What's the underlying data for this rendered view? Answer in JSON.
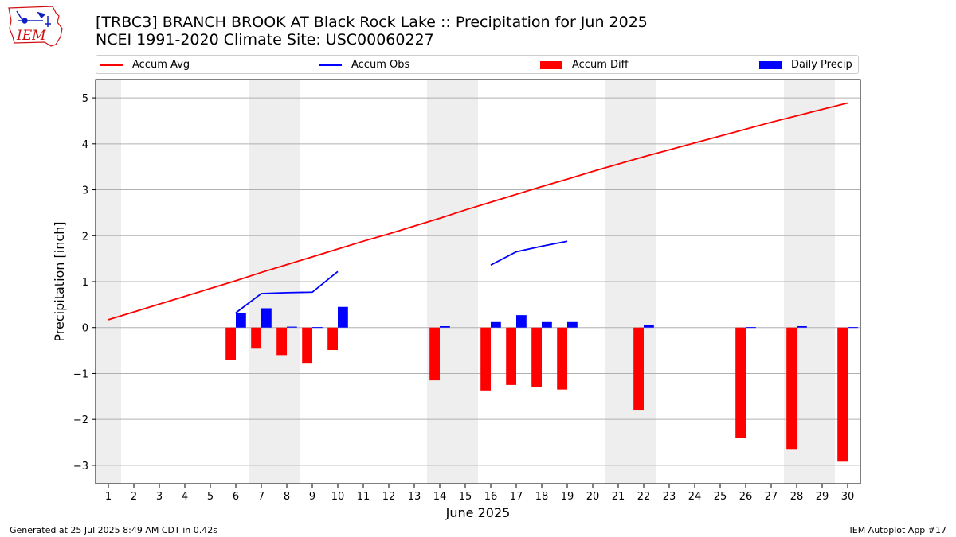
{
  "title_line1": "[TRBC3] BRANCH BROOK  AT Black Rock Lake :: Precipitation for Jun 2025",
  "title_line2": "NCEI 1991-2020 Climate Site: USC00060227",
  "logo_text": "IEM",
  "footer_left": "Generated at 25 Jul 2025 8:49 AM CDT in 0.42s",
  "footer_right": "IEM Autoplot App #17",
  "legend": [
    {
      "label": "Accum Avg",
      "kind": "line",
      "color": "#ff0000"
    },
    {
      "label": "Accum Obs",
      "kind": "line",
      "color": "#0000ff"
    },
    {
      "label": "Accum Diff",
      "kind": "patch",
      "color": "#ff0000"
    },
    {
      "label": "Daily Precip",
      "kind": "patch",
      "color": "#0000ff"
    }
  ],
  "chart_data": {
    "type": "bar",
    "xlabel": "June 2025",
    "ylabel": "Precipitation [inch]",
    "xlim": [
      0.5,
      30.5
    ],
    "ylim": [
      -3.4,
      5.4
    ],
    "x_ticks": [
      1,
      2,
      3,
      4,
      5,
      6,
      7,
      8,
      9,
      10,
      11,
      12,
      13,
      14,
      15,
      16,
      17,
      18,
      19,
      20,
      21,
      22,
      23,
      24,
      25,
      26,
      27,
      28,
      29,
      30
    ],
    "y_ticks": [
      -3,
      -2,
      -1,
      0,
      1,
      2,
      3,
      4,
      5
    ],
    "y_tick_labels": [
      "−3",
      "−2",
      "−1",
      "0",
      "1",
      "2",
      "3",
      "4",
      "5"
    ],
    "grid": "horizontal",
    "weekend_days": [
      1,
      7,
      8,
      14,
      15,
      21,
      22,
      28,
      29
    ],
    "weekend_color": "#eeeeee",
    "series": [
      {
        "name": "Accum Avg",
        "kind": "line",
        "color": "#ff0000",
        "x": [
          1,
          2,
          3,
          4,
          5,
          6,
          7,
          8,
          9,
          10,
          11,
          12,
          13,
          14,
          15,
          16,
          17,
          18,
          19,
          20,
          21,
          22,
          23,
          24,
          25,
          26,
          27,
          28,
          29,
          30
        ],
        "values": [
          0.17,
          0.34,
          0.51,
          0.68,
          0.85,
          1.02,
          1.2,
          1.37,
          1.54,
          1.71,
          1.88,
          2.04,
          2.21,
          2.38,
          2.56,
          2.73,
          2.9,
          3.07,
          3.23,
          3.4,
          3.56,
          3.72,
          3.87,
          4.02,
          4.17,
          4.32,
          4.47,
          4.61,
          4.75,
          4.89
        ]
      },
      {
        "name": "Accum Obs",
        "kind": "line",
        "color": "#0000ff",
        "segments": [
          {
            "x": [
              6,
              7,
              8,
              9,
              10
            ],
            "values": [
              0.32,
              0.74,
              0.76,
              0.77,
              1.22
            ]
          },
          {
            "x": [
              16,
              17,
              18,
              19
            ],
            "values": [
              1.36,
              1.65,
              1.77,
              1.88
            ]
          }
        ]
      },
      {
        "name": "Accum Diff",
        "kind": "bar",
        "color": "#ff0000",
        "offset": -0.2,
        "width": 0.4,
        "x": [
          6,
          7,
          8,
          9,
          10,
          14,
          16,
          17,
          18,
          19,
          22,
          26,
          28,
          30
        ],
        "values": [
          -0.7,
          -0.46,
          -0.6,
          -0.77,
          -0.49,
          -1.15,
          -1.37,
          -1.25,
          -1.3,
          -1.35,
          -1.79,
          -2.4,
          -2.66,
          -2.92
        ]
      },
      {
        "name": "Daily Precip",
        "kind": "bar",
        "color": "#0000ff",
        "offset": 0.2,
        "width": 0.4,
        "x": [
          6,
          7,
          8,
          9,
          10,
          14,
          16,
          17,
          18,
          19,
          22,
          26,
          28,
          30
        ],
        "values": [
          0.32,
          0.42,
          0.02,
          0.01,
          0.45,
          0.03,
          0.12,
          0.27,
          0.12,
          0.12,
          0.05,
          0.01,
          0.03,
          0.01
        ]
      }
    ]
  }
}
